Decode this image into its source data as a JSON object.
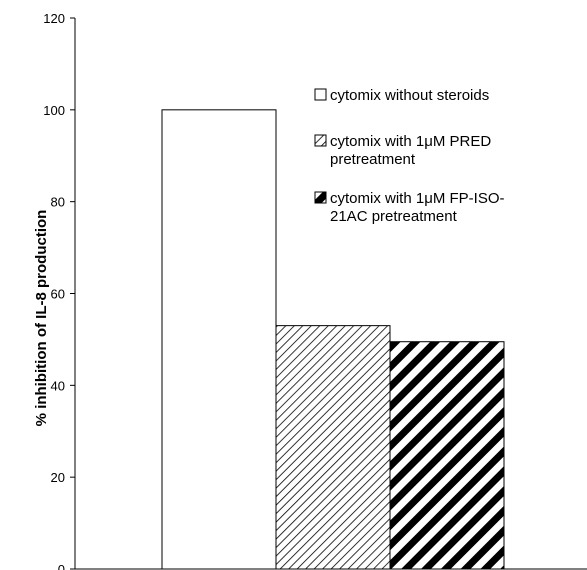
{
  "chart_data": {
    "type": "bar",
    "title": "",
    "xlabel": "",
    "ylabel": "% inhibition of IL-8 production",
    "ylim": [
      0,
      120
    ],
    "yticks": [
      0,
      20,
      40,
      60,
      80,
      100,
      120
    ],
    "grid": false,
    "legend_position": "top-right, inside plot",
    "categories": [
      ""
    ],
    "series": [
      {
        "name": "cytomix without steroids",
        "values": [
          100
        ],
        "fill": "solid-white"
      },
      {
        "name": "cytomix with 1μM PRED pretreatment",
        "legend_lines": [
          "cytomix with 1μM PRED",
          "pretreatment"
        ],
        "values": [
          53
        ],
        "fill": "fine-diagonal-hatch"
      },
      {
        "name": "cytomix with 1μM FP-ISO-21AC pretreatment",
        "legend_lines": [
          "cytomix with 1μM FP-ISO-",
          "21AC pretreatment"
        ],
        "values": [
          49.5
        ],
        "fill": "wide-diagonal-stripes"
      }
    ],
    "colors": {
      "axis": "#000000",
      "bar_outline": "#000000",
      "bar_fill": "#ffffff"
    }
  }
}
